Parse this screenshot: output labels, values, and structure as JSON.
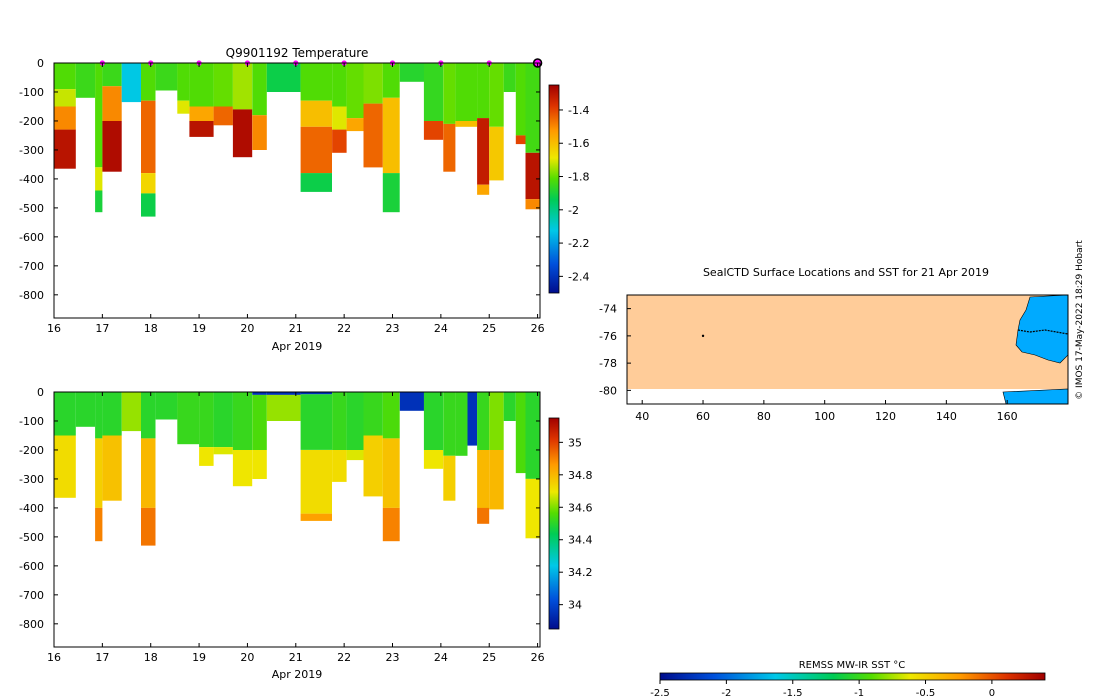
{
  "figure": {
    "credit": "© IMOS 17-May-2022 18:29 Hobart"
  },
  "chart_data": [
    {
      "id": "temperature",
      "type": "heatmap",
      "title": "Q9901192  Temperature",
      "xlabel": "Apr 2019",
      "ylabel": "",
      "xlim": [
        16,
        26.05
      ],
      "ylim": [
        -880,
        0
      ],
      "xticks": [
        16,
        17,
        18,
        19,
        20,
        21,
        22,
        23,
        24,
        25,
        26
      ],
      "yticks": [
        0,
        -100,
        -200,
        -300,
        -400,
        -500,
        -600,
        -700,
        -800
      ],
      "colorbar": {
        "min": -2.5,
        "max": -1.25,
        "ticks": [
          -1.4,
          -1.6,
          -1.8,
          -2,
          -2.2,
          -2.4
        ],
        "tick_labels": [
          "-1.4",
          "-1.6",
          "-1.8",
          "-2",
          "-2.2",
          "-2.4"
        ]
      },
      "markers": {
        "label": "daily profile markers",
        "x": [
          17,
          18,
          19,
          20,
          21,
          22,
          23,
          24,
          25
        ],
        "last_position": 26,
        "color": "#ff00ff"
      },
      "profiles": [
        {
          "x0": 16.0,
          "x1": 16.45,
          "depth": 365,
          "layers": [
            [
              0,
              90,
              -1.82
            ],
            [
              90,
              150,
              -1.72
            ],
            [
              150,
              230,
              -1.5
            ],
            [
              230,
              365,
              -1.3
            ]
          ]
        },
        {
          "x0": 16.45,
          "x1": 16.85,
          "depth": 120,
          "layers": [
            [
              0,
              120,
              -1.85
            ]
          ]
        },
        {
          "x0": 16.85,
          "x1": 17.0,
          "depth": 515,
          "layers": [
            [
              0,
              360,
              -1.82
            ],
            [
              360,
              440,
              -1.7
            ],
            [
              440,
              515,
              -1.9
            ]
          ]
        },
        {
          "x0": 17.0,
          "x1": 17.4,
          "depth": 375,
          "layers": [
            [
              0,
              80,
              -1.85
            ],
            [
              80,
              200,
              -1.5
            ],
            [
              200,
              375,
              -1.28
            ]
          ]
        },
        {
          "x0": 17.4,
          "x1": 17.8,
          "depth": 135,
          "layers": [
            [
              0,
              135,
              -2.12
            ]
          ]
        },
        {
          "x0": 17.8,
          "x1": 18.1,
          "depth": 530,
          "layers": [
            [
              0,
              130,
              -1.82
            ],
            [
              130,
              380,
              -1.45
            ],
            [
              380,
              450,
              -1.65
            ],
            [
              450,
              530,
              -1.92
            ]
          ]
        },
        {
          "x0": 18.1,
          "x1": 18.55,
          "depth": 95,
          "layers": [
            [
              0,
              95,
              -1.85
            ]
          ]
        },
        {
          "x0": 18.55,
          "x1": 18.8,
          "depth": 175,
          "layers": [
            [
              0,
              130,
              -1.82
            ],
            [
              130,
              175,
              -1.7
            ]
          ]
        },
        {
          "x0": 18.8,
          "x1": 19.3,
          "depth": 255,
          "layers": [
            [
              0,
              150,
              -1.82
            ],
            [
              150,
              200,
              -1.55
            ],
            [
              200,
              255,
              -1.3
            ]
          ]
        },
        {
          "x0": 19.3,
          "x1": 19.7,
          "depth": 215,
          "layers": [
            [
              0,
              150,
              -1.8
            ],
            [
              150,
              215,
              -1.45
            ]
          ]
        },
        {
          "x0": 19.7,
          "x1": 20.1,
          "depth": 325,
          "layers": [
            [
              0,
              160,
              -1.75
            ],
            [
              160,
              325,
              -1.28
            ]
          ]
        },
        {
          "x0": 20.1,
          "x1": 20.4,
          "depth": 300,
          "layers": [
            [
              0,
              180,
              -1.82
            ],
            [
              180,
              300,
              -1.5
            ]
          ]
        },
        {
          "x0": 20.4,
          "x1": 21.1,
          "depth": 100,
          "layers": [
            [
              0,
              100,
              -1.92
            ]
          ]
        },
        {
          "x0": 21.1,
          "x1": 21.75,
          "depth": 445,
          "layers": [
            [
              0,
              130,
              -1.82
            ],
            [
              130,
              220,
              -1.6
            ],
            [
              220,
              380,
              -1.45
            ],
            [
              380,
              445,
              -1.92
            ]
          ]
        },
        {
          "x0": 21.75,
          "x1": 22.05,
          "depth": 310,
          "layers": [
            [
              0,
              150,
              -1.82
            ],
            [
              150,
              230,
              -1.7
            ],
            [
              230,
              310,
              -1.4
            ]
          ]
        },
        {
          "x0": 22.05,
          "x1": 22.4,
          "depth": 235,
          "layers": [
            [
              0,
              190,
              -1.8
            ],
            [
              190,
              235,
              -1.55
            ]
          ]
        },
        {
          "x0": 22.4,
          "x1": 22.8,
          "depth": 360,
          "layers": [
            [
              0,
              140,
              -1.78
            ],
            [
              140,
              360,
              -1.45
            ]
          ]
        },
        {
          "x0": 22.8,
          "x1": 23.15,
          "depth": 515,
          "layers": [
            [
              0,
              120,
              -1.82
            ],
            [
              120,
              380,
              -1.6
            ],
            [
              380,
              515,
              -1.9
            ]
          ]
        },
        {
          "x0": 23.15,
          "x1": 23.65,
          "depth": 65,
          "layers": [
            [
              0,
              65,
              -1.88
            ]
          ]
        },
        {
          "x0": 23.65,
          "x1": 24.05,
          "depth": 265,
          "layers": [
            [
              0,
              200,
              -1.86
            ],
            [
              200,
              265,
              -1.4
            ]
          ]
        },
        {
          "x0": 24.05,
          "x1": 24.3,
          "depth": 375,
          "layers": [
            [
              0,
              210,
              -1.8
            ],
            [
              210,
              375,
              -1.45
            ]
          ]
        },
        {
          "x0": 24.3,
          "x1": 24.75,
          "depth": 220,
          "layers": [
            [
              0,
              200,
              -1.82
            ],
            [
              200,
              220,
              -1.6
            ]
          ]
        },
        {
          "x0": 24.75,
          "x1": 25.0,
          "depth": 455,
          "layers": [
            [
              0,
              190,
              -1.82
            ],
            [
              190,
              420,
              -1.32
            ],
            [
              420,
              455,
              -1.55
            ]
          ]
        },
        {
          "x0": 25.0,
          "x1": 25.3,
          "depth": 405,
          "layers": [
            [
              0,
              220,
              -1.8
            ],
            [
              220,
              405,
              -1.62
            ]
          ]
        },
        {
          "x0": 25.3,
          "x1": 25.55,
          "depth": 100,
          "layers": [
            [
              0,
              100,
              -1.85
            ]
          ]
        },
        {
          "x0": 25.55,
          "x1": 25.75,
          "depth": 280,
          "layers": [
            [
              0,
              250,
              -1.82
            ],
            [
              250,
              280,
              -1.4
            ]
          ]
        },
        {
          "x0": 25.75,
          "x1": 26.05,
          "depth": 505,
          "layers": [
            [
              0,
              310,
              -1.84
            ],
            [
              310,
              470,
              -1.3
            ],
            [
              470,
              505,
              -1.5
            ]
          ]
        }
      ]
    },
    {
      "id": "salinity",
      "type": "heatmap",
      "title": "",
      "xlabel": "Apr 2019",
      "ylabel": "",
      "xlim": [
        16,
        26.05
      ],
      "ylim": [
        -880,
        0
      ],
      "xticks": [
        16,
        17,
        18,
        19,
        20,
        21,
        22,
        23,
        24,
        25,
        26
      ],
      "yticks": [
        0,
        -100,
        -200,
        -300,
        -400,
        -500,
        -600,
        -700,
        -800
      ],
      "colorbar": {
        "min": 33.85,
        "max": 35.15,
        "ticks": [
          35,
          34.8,
          34.6,
          34.4,
          34.2,
          34
        ],
        "tick_labels": [
          "35",
          "34.8",
          "34.6",
          "34.4",
          "34.2",
          "34"
        ]
      },
      "profiles": [
        {
          "x0": 16.0,
          "x1": 16.45,
          "depth": 365,
          "layers": [
            [
              0,
              150,
              34.5
            ],
            [
              150,
              365,
              34.72
            ]
          ]
        },
        {
          "x0": 16.45,
          "x1": 16.85,
          "depth": 120,
          "layers": [
            [
              0,
              120,
              34.5
            ]
          ]
        },
        {
          "x0": 16.85,
          "x1": 17.0,
          "depth": 515,
          "layers": [
            [
              0,
              160,
              34.5
            ],
            [
              160,
              400,
              34.75
            ],
            [
              400,
              515,
              34.9
            ]
          ]
        },
        {
          "x0": 17.0,
          "x1": 17.4,
          "depth": 375,
          "layers": [
            [
              0,
              150,
              34.5
            ],
            [
              150,
              375,
              34.78
            ]
          ]
        },
        {
          "x0": 17.4,
          "x1": 17.8,
          "depth": 135,
          "layers": [
            [
              0,
              135,
              34.62
            ]
          ]
        },
        {
          "x0": 17.8,
          "x1": 18.1,
          "depth": 530,
          "layers": [
            [
              0,
              160,
              34.5
            ],
            [
              160,
              400,
              34.8
            ],
            [
              400,
              530,
              34.92
            ]
          ]
        },
        {
          "x0": 18.1,
          "x1": 18.55,
          "depth": 95,
          "layers": [
            [
              0,
              95,
              34.5
            ]
          ]
        },
        {
          "x0": 18.55,
          "x1": 19.0,
          "depth": 180,
          "layers": [
            [
              0,
              180,
              34.52
            ]
          ]
        },
        {
          "x0": 19.0,
          "x1": 19.3,
          "depth": 255,
          "layers": [
            [
              0,
              190,
              34.52
            ],
            [
              190,
              255,
              34.7
            ]
          ]
        },
        {
          "x0": 19.3,
          "x1": 19.7,
          "depth": 215,
          "layers": [
            [
              0,
              190,
              34.5
            ],
            [
              190,
              215,
              34.68
            ]
          ]
        },
        {
          "x0": 19.7,
          "x1": 20.1,
          "depth": 325,
          "layers": [
            [
              0,
              200,
              34.52
            ],
            [
              200,
              325,
              34.7
            ]
          ]
        },
        {
          "x0": 20.1,
          "x1": 20.4,
          "depth": 300,
          "layers": [
            [
              0,
              10,
              33.95
            ],
            [
              10,
              200,
              34.55
            ],
            [
              200,
              300,
              34.7
            ]
          ]
        },
        {
          "x0": 20.4,
          "x1": 21.1,
          "depth": 100,
          "layers": [
            [
              0,
              10,
              33.95
            ],
            [
              10,
              100,
              34.62
            ]
          ]
        },
        {
          "x0": 21.1,
          "x1": 21.75,
          "depth": 445,
          "layers": [
            [
              0,
              8,
              33.95
            ],
            [
              8,
              200,
              34.5
            ],
            [
              200,
              420,
              34.72
            ],
            [
              420,
              445,
              34.85
            ]
          ]
        },
        {
          "x0": 21.75,
          "x1": 22.05,
          "depth": 310,
          "layers": [
            [
              0,
              200,
              34.52
            ],
            [
              200,
              310,
              34.72
            ]
          ]
        },
        {
          "x0": 22.05,
          "x1": 22.4,
          "depth": 235,
          "layers": [
            [
              0,
              200,
              34.5
            ],
            [
              200,
              235,
              34.68
            ]
          ]
        },
        {
          "x0": 22.4,
          "x1": 22.8,
          "depth": 360,
          "layers": [
            [
              0,
              150,
              34.52
            ],
            [
              150,
              360,
              34.75
            ]
          ]
        },
        {
          "x0": 22.8,
          "x1": 23.15,
          "depth": 515,
          "layers": [
            [
              0,
              160,
              34.55
            ],
            [
              160,
              400,
              34.78
            ],
            [
              400,
              515,
              34.9
            ]
          ]
        },
        {
          "x0": 23.15,
          "x1": 23.65,
          "depth": 65,
          "layers": [
            [
              0,
              65,
              33.95
            ]
          ]
        },
        {
          "x0": 23.65,
          "x1": 24.05,
          "depth": 265,
          "layers": [
            [
              0,
              200,
              34.5
            ],
            [
              200,
              265,
              34.7
            ]
          ]
        },
        {
          "x0": 24.05,
          "x1": 24.3,
          "depth": 375,
          "layers": [
            [
              0,
              220,
              34.52
            ],
            [
              220,
              375,
              34.75
            ]
          ]
        },
        {
          "x0": 24.3,
          "x1": 24.55,
          "depth": 220,
          "layers": [
            [
              0,
              220,
              34.52
            ]
          ]
        },
        {
          "x0": 24.55,
          "x1": 24.75,
          "depth": 185,
          "layers": [
            [
              0,
              185,
              33.95
            ]
          ]
        },
        {
          "x0": 24.75,
          "x1": 25.0,
          "depth": 455,
          "layers": [
            [
              0,
              200,
              34.52
            ],
            [
              200,
              400,
              34.8
            ],
            [
              400,
              455,
              34.92
            ]
          ]
        },
        {
          "x0": 25.0,
          "x1": 25.3,
          "depth": 405,
          "layers": [
            [
              0,
              200,
              34.6
            ],
            [
              200,
              405,
              34.8
            ]
          ]
        },
        {
          "x0": 25.3,
          "x1": 25.55,
          "depth": 100,
          "layers": [
            [
              0,
              100,
              34.5
            ]
          ]
        },
        {
          "x0": 25.55,
          "x1": 25.75,
          "depth": 280,
          "layers": [
            [
              0,
              280,
              34.55
            ]
          ]
        },
        {
          "x0": 25.75,
          "x1": 26.05,
          "depth": 505,
          "layers": [
            [
              0,
              300,
              34.5
            ],
            [
              300,
              505,
              34.7
            ]
          ]
        }
      ]
    },
    {
      "id": "map",
      "type": "map",
      "title": "SealCTD Surface Locations and SST for 21 Apr 2019",
      "xlim": [
        35,
        180
      ],
      "ylim": [
        -81,
        -73
      ],
      "xticks": [
        40,
        60,
        80,
        100,
        120,
        140,
        160
      ],
      "yticks": [
        -74,
        -76,
        -78,
        -80
      ],
      "sst_background": -0.25,
      "land_color": "#ffffff",
      "sea_color": "#00aaff",
      "locations": [
        {
          "lon": 60,
          "lat": -76
        }
      ],
      "colorbar": {
        "label": "REMSS MW-IR SST °C",
        "min": -2.5,
        "max": 0.4,
        "ticks": [
          -2.5,
          -2,
          -1.5,
          -1,
          -0.5,
          0
        ],
        "tick_labels": [
          "-2.5",
          "-2",
          "-1.5",
          "-1",
          "-0.5",
          "0"
        ]
      }
    }
  ]
}
